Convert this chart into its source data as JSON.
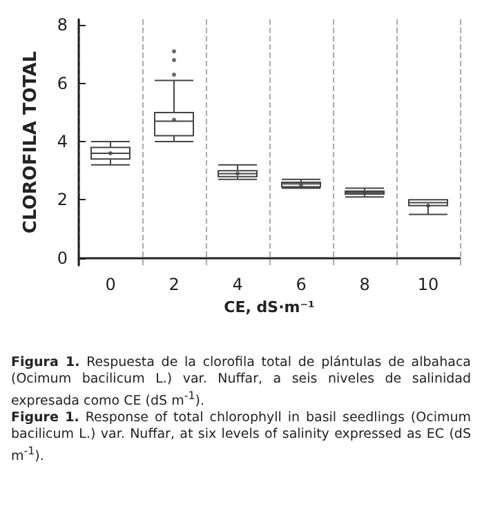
{
  "chart_data": {
    "type": "box",
    "xlabel": "CE, dS·m⁻¹",
    "ylabel": "CLOROFILA TOTAL",
    "categories": [
      "0",
      "2",
      "4",
      "6",
      "8",
      "10"
    ],
    "boxes": [
      {
        "low": 3.2,
        "q1": 3.4,
        "median": 3.6,
        "q3": 3.8,
        "high": 4.0,
        "mean": 3.6
      },
      {
        "low": 4.0,
        "q1": 4.2,
        "median": 4.7,
        "q3": 5.0,
        "high": 6.1,
        "mean": 4.75,
        "outliers": [
          6.3,
          6.8,
          7.1
        ]
      },
      {
        "low": 2.7,
        "q1": 2.8,
        "median": 2.9,
        "q3": 3.0,
        "high": 3.2,
        "mean": 2.9
      },
      {
        "low": 2.4,
        "q1": 2.45,
        "median": 2.55,
        "q3": 2.6,
        "high": 2.7,
        "mean": 2.5
      },
      {
        "low": 2.1,
        "q1": 2.2,
        "median": 2.25,
        "q3": 2.3,
        "high": 2.4,
        "mean": 2.25
      },
      {
        "low": 1.5,
        "q1": 1.8,
        "median": 1.9,
        "q3": 2.0,
        "high": 2.0,
        "mean": 1.8
      }
    ],
    "color": "#444444",
    "ylim": [
      -0.25,
      8.2
    ],
    "yticks": [
      0,
      2,
      4,
      6,
      8
    ],
    "grid": "x",
    "annotations": [
      "Figura 1. Respuesta de la clorofila total de plántulas de albahaca (Ocimum bacilicum L.) var. Nuffar, a seis niveles de salinidad expresada como CE (dS m$^{-1}$).",
      "Figure 1. Response of total chlorophyll in basil seedlings (Ocimum bacilicum L.) var. Nuffar, at six levels of salinity expressed as EC (dS m$^{-1}$)."
    ]
  }
}
